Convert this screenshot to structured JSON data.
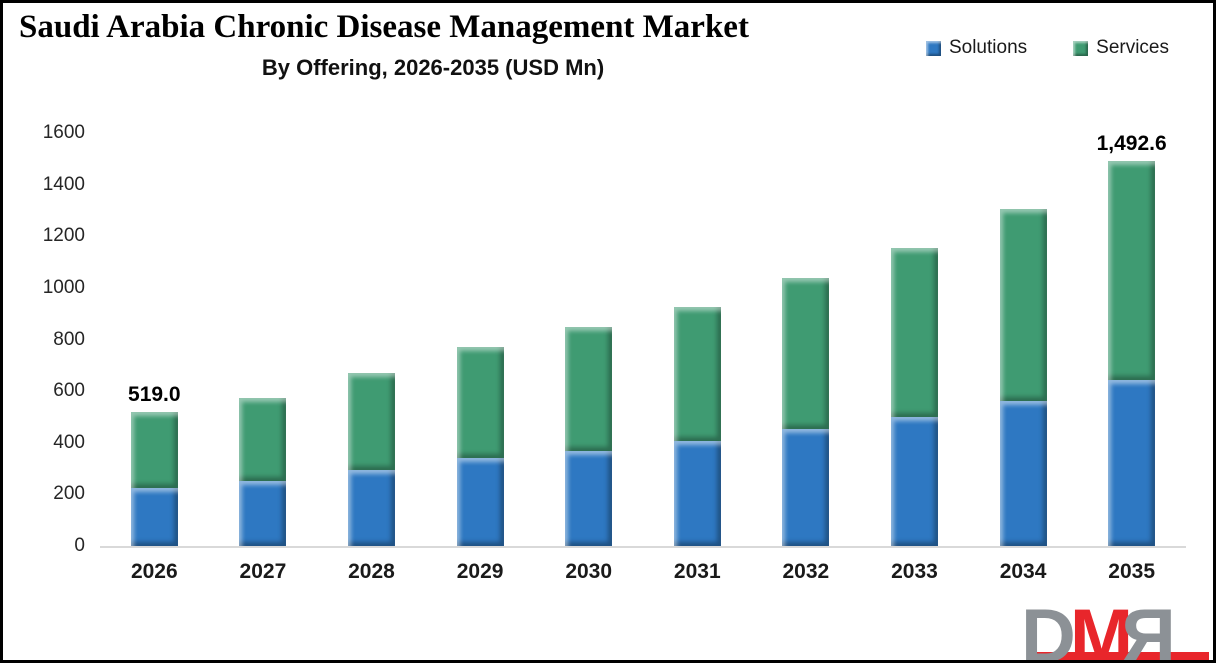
{
  "title": "Saudi Arabia Chronic Disease Management Market",
  "subtitle": "By Offering, 2026-2035 (USD Mn)",
  "legend": [
    {
      "label": "Solutions",
      "color": "#2e78c2"
    },
    {
      "label": "Services",
      "color": "#3f9b72"
    }
  ],
  "colors": {
    "solutions_blue": "#2e78c2",
    "services_green": "#3f9b72",
    "axis_line_gray": "#d9d9d9",
    "text_black": "#1a1a1a",
    "logo_gray": "#8c9196",
    "logo_red": "#e8262b"
  },
  "chart_data": {
    "type": "bar",
    "stacked": true,
    "title": "Saudi Arabia Chronic Disease Management Market",
    "subtitle": "By Offering, 2026-2035 (USD Mn)",
    "xlabel": "",
    "ylabel": "",
    "categories": [
      "2026",
      "2027",
      "2028",
      "2029",
      "2030",
      "2031",
      "2032",
      "2033",
      "2034",
      "2035"
    ],
    "series": [
      {
        "name": "Solutions",
        "color": "#2e78c2",
        "values": [
          225,
          250,
          295,
          340,
          370,
          405,
          455,
          500,
          560,
          645
        ]
      },
      {
        "name": "Services",
        "color": "#3f9b72",
        "values": [
          294,
          325,
          375,
          430,
          480,
          520,
          585,
          655,
          745,
          847.6
        ]
      }
    ],
    "totals": [
      519.0,
      575,
      670,
      770,
      850,
      925,
      1040,
      1155,
      1305,
      1492.6
    ],
    "bar_value_labels": [
      "519.0",
      "",
      "",
      "",
      "",
      "",
      "",
      "",
      "",
      "1,492.6"
    ],
    "ylim": [
      0,
      1600
    ],
    "ytick_step": 200,
    "yticks": [
      0,
      200,
      400,
      600,
      800,
      1000,
      1200,
      1400,
      1600
    ],
    "grid": false,
    "legend_position": "top-right"
  },
  "logo": {
    "letters": [
      {
        "char": "D",
        "color": "#8c9196",
        "mirrored": false
      },
      {
        "char": "M",
        "color": "#e8262b",
        "mirrored": false
      },
      {
        "char": "R",
        "color": "#8c9196",
        "mirrored": true
      }
    ],
    "underline_color": "#e8262b"
  }
}
